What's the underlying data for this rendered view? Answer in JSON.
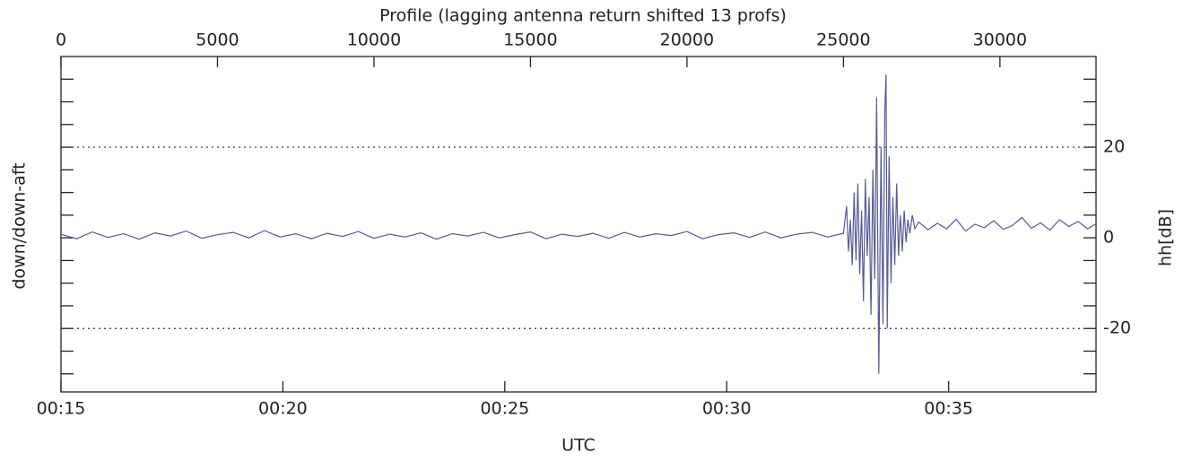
{
  "chart_data": {
    "type": "line",
    "title": "Profile (lagging antenna return shifted 13 profs)",
    "xlabel": "UTC",
    "ylabel": "down/down-aft",
    "y2label": "hh[dB]",
    "color": "#555b95",
    "x": [
      0,
      500,
      1000,
      1500,
      2000,
      2500,
      3000,
      3500,
      4000,
      4500,
      5000,
      5500,
      6000,
      6500,
      7000,
      7500,
      8000,
      8500,
      9000,
      9500,
      10000,
      10500,
      11000,
      11500,
      12000,
      12500,
      13000,
      13500,
      14000,
      14500,
      15000,
      15500,
      16000,
      16500,
      17000,
      17500,
      18000,
      18500,
      19000,
      19500,
      20000,
      20500,
      21000,
      21500,
      22000,
      22500,
      23000,
      23500,
      24000,
      24500,
      25000,
      25100,
      25160,
      25220,
      25280,
      25340,
      25400,
      25460,
      25520,
      25580,
      25640,
      25700,
      25760,
      25820,
      25880,
      25940,
      26000,
      26060,
      26130,
      26200,
      26260,
      26320,
      26360,
      26400,
      26460,
      26520,
      26580,
      26640,
      26700,
      26760,
      26820,
      26880,
      26940,
      27000,
      27060,
      27120,
      27200,
      27280,
      27400,
      27700,
      28000,
      28300,
      28600,
      28900,
      29200,
      29500,
      29800,
      30100,
      30400,
      30700,
      31000,
      31300,
      31600,
      31900,
      32200,
      32500,
      32800,
      33050
    ],
    "values": [
      0.8,
      -0.2,
      1.3,
      0.1,
      0.9,
      -0.3,
      1.1,
      0.4,
      1.5,
      -0.1,
      0.7,
      1.2,
      0.0,
      1.6,
      0.2,
      0.9,
      -0.2,
      1.0,
      0.3,
      1.4,
      -0.1,
      0.8,
      0.2,
      1.1,
      -0.3,
      0.9,
      0.4,
      1.2,
      0.0,
      0.7,
      1.3,
      -0.2,
      0.8,
      0.3,
      1.0,
      -0.1,
      1.2,
      0.2,
      0.9,
      0.5,
      1.4,
      -0.2,
      0.7,
      1.1,
      0.1,
      1.3,
      0.0,
      0.8,
      1.2,
      0.2,
      1.0,
      7,
      -3,
      4,
      -6,
      10,
      -5,
      12,
      -8,
      6,
      -14,
      13,
      -4,
      9,
      -17,
      15,
      -9,
      31,
      -30,
      20,
      -19,
      28,
      36,
      -20,
      18,
      -10,
      9,
      -6,
      12,
      -4,
      5,
      -3,
      6,
      -1,
      4,
      1,
      5,
      2,
      3.5,
      1.8,
      3.2,
      2.0,
      4.1,
      1.5,
      3.0,
      2.2,
      3.8,
      1.9,
      2.7,
      4.5,
      2.1,
      3.3,
      1.7,
      4.0,
      2.5,
      3.6,
      2.0,
      3.0
    ],
    "xlim": [
      0,
      33070
    ],
    "xticks": [
      0,
      5000,
      10000,
      15000,
      20000,
      25000,
      30000
    ],
    "x2ticks": [
      {
        "value": 0,
        "label": "00:15"
      },
      {
        "value": 7090,
        "label": "00:20"
      },
      {
        "value": 14180,
        "label": "00:25"
      },
      {
        "value": 21270,
        "label": "00:30"
      },
      {
        "value": 28360,
        "label": "00:35"
      }
    ],
    "ylim": [
      -34,
      40
    ],
    "yticks": [
      -20,
      0,
      20
    ],
    "y_minor_ticks": [
      -30,
      -25,
      -15,
      -10,
      -5,
      5,
      10,
      15,
      25,
      30,
      35
    ],
    "reference_lines": [
      -20,
      20
    ]
  }
}
